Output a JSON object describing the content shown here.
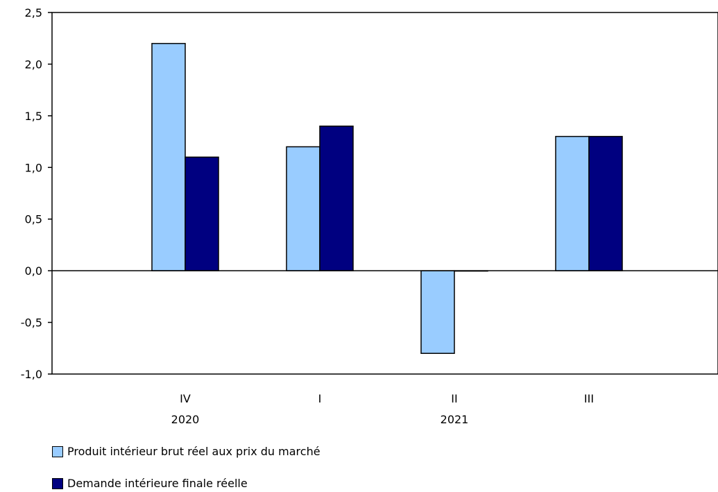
{
  "chart_data": {
    "type": "bar",
    "categories": [
      "IV",
      "I",
      "II",
      "III"
    ],
    "group_labels": [
      "2020",
      "2021"
    ],
    "series": [
      {
        "name": "Produit intérieur brut réel aux prix du marché",
        "values": [
          2.2,
          1.2,
          -0.8,
          1.3
        ],
        "color": "#99ccff"
      },
      {
        "name": "Demande intérieure finale réelle",
        "values": [
          1.1,
          1.4,
          0.0,
          1.3
        ],
        "color": "#000080"
      }
    ],
    "yticks": [
      "-1,0",
      "-0,5",
      "0,0",
      "0,5",
      "1,0",
      "1,5",
      "2,0",
      "2,5"
    ],
    "ylim": [
      -1.0,
      2.5
    ],
    "grid": false,
    "legend_position": "bottom"
  }
}
